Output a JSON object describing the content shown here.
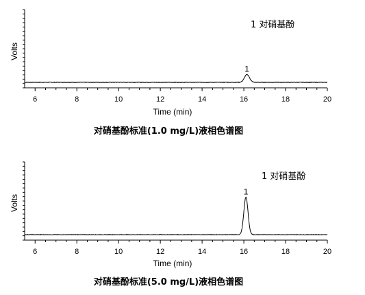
{
  "chart_data": [
    {
      "type": "line",
      "title": "对硝基酚标准(1.0 mg/L)液相色谱图",
      "xlabel": "Time (min)",
      "ylabel": "Volts",
      "xlim": [
        5.5,
        20
      ],
      "ylim": [
        0,
        1
      ],
      "x_ticks": [
        6,
        8,
        10,
        12,
        14,
        16,
        18,
        20
      ],
      "x_tick_labels": [
        "6",
        "8",
        "10",
        "12",
        "14",
        "16",
        "18",
        "20"
      ],
      "grid": false,
      "baseline": 0.07,
      "peaks": [
        {
          "id": "1",
          "label": "1",
          "x": 16.15,
          "height": 0.1,
          "width": 0.12
        }
      ],
      "legend_text": "1 对硝基酚",
      "legend_position": "top-right"
    },
    {
      "type": "line",
      "title": "对硝基酚标准(5.0 mg/L)液相色谱图",
      "xlabel": "Time (min)",
      "ylabel": "Volts",
      "xlim": [
        5.5,
        20
      ],
      "ylim": [
        0,
        1
      ],
      "x_ticks": [
        6,
        8,
        10,
        12,
        14,
        16,
        18,
        20
      ],
      "x_tick_labels": [
        "6",
        "8",
        "10",
        "12",
        "14",
        "16",
        "18",
        "20"
      ],
      "grid": false,
      "baseline": 0.07,
      "peaks": [
        {
          "id": "1",
          "label": "1",
          "x": 16.1,
          "height": 0.48,
          "width": 0.1
        }
      ],
      "legend_text": "1 对硝基酚",
      "legend_position": "top-right"
    }
  ]
}
